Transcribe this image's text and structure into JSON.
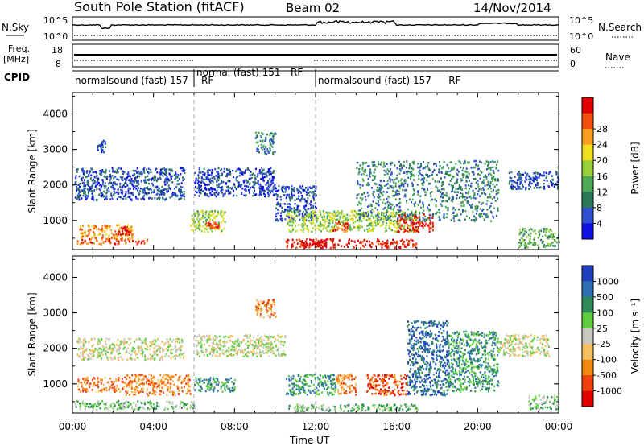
{
  "header": {
    "station": "South Pole Station (fitACF)",
    "beam": "Beam 02",
    "date": "14/Nov/2014"
  },
  "strip_labels": {
    "nsky": "N.Sky",
    "freq_line1": "Freq.",
    "freq_line2": "[MHz]",
    "cpid": "CPID",
    "nsearch": "N.Search",
    "nave": "Nave"
  },
  "strip_ticks": {
    "noise_left_top": "10^5",
    "noise_left_bottom": "10^0",
    "noise_right_top": "10^5",
    "noise_right_bottom": "10^0",
    "freq_left_top": "18",
    "freq_left_bottom": "8",
    "nave_right_top": "60",
    "nave_right_bottom": "0"
  },
  "cpid_segments": [
    {
      "label": "normalsound (fast) 157",
      "suffix": "RF",
      "start_hour": 0,
      "end_hour": 6
    },
    {
      "label": "normal (fast) 151",
      "suffix": "RF",
      "start_hour": 6,
      "end_hour": 12
    },
    {
      "label": "normalsound (fast) 157",
      "suffix": "RF",
      "start_hour": 12,
      "end_hour": 24
    }
  ],
  "chart_data": [
    {
      "type": "heatmap",
      "parameter": "Power",
      "ylabel": "Slant Range [km]",
      "ylim": [
        180,
        4600
      ],
      "yticks": [
        1000,
        2000,
        3000,
        4000
      ],
      "xlim": [
        0,
        24
      ],
      "xticks": [
        "00:00",
        "04:00",
        "08:00",
        "12:00",
        "16:00",
        "20:00",
        "00:00"
      ],
      "colorbar": {
        "label": "Power [dB]",
        "ticks": [
          "4",
          "8",
          "12",
          "16",
          "20",
          "24",
          "28"
        ],
        "colors": [
          "#1010e0",
          "#3050d0",
          "#2a7a5a",
          "#4caa55",
          "#9ad03a",
          "#f0e020",
          "#f7a020",
          "#f05010",
          "#e00000"
        ]
      },
      "echo_regions": [
        {
          "x": [
            0.2,
            3.8
          ],
          "y": [
            350,
            500
          ],
          "level": 7
        },
        {
          "x": [
            0.3,
            3.0
          ],
          "y": [
            500,
            900
          ],
          "level": 6
        },
        {
          "x": [
            2.2,
            2.9
          ],
          "y": [
            600,
            850
          ],
          "level": 8
        },
        {
          "x": [
            0.1,
            5.5
          ],
          "y": [
            1600,
            2500
          ],
          "level": 1
        },
        {
          "x": [
            1.2,
            1.6
          ],
          "y": [
            2900,
            3300
          ],
          "level": 1
        },
        {
          "x": [
            6.0,
            10.0
          ],
          "y": [
            1700,
            2500
          ],
          "level": 1
        },
        {
          "x": [
            5.8,
            7.5
          ],
          "y": [
            700,
            1300
          ],
          "level": 4
        },
        {
          "x": [
            6.5,
            7.2
          ],
          "y": [
            800,
            1000
          ],
          "level": 7
        },
        {
          "x": [
            9.0,
            10.0
          ],
          "y": [
            2900,
            3500
          ],
          "level": 2
        },
        {
          "x": [
            10.0,
            12.0
          ],
          "y": [
            1000,
            2000
          ],
          "level": 1
        },
        {
          "x": [
            10.5,
            17.0
          ],
          "y": [
            250,
            500
          ],
          "level": 8
        },
        {
          "x": [
            11.3,
            12.5
          ],
          "y": [
            280,
            450
          ],
          "level": 9
        },
        {
          "x": [
            10.5,
            17.0
          ],
          "y": [
            700,
            1300
          ],
          "level": 4
        },
        {
          "x": [
            12.8,
            13.6
          ],
          "y": [
            700,
            1000
          ],
          "level": 7
        },
        {
          "x": [
            16.0,
            17.8
          ],
          "y": [
            700,
            1200
          ],
          "level": 8
        },
        {
          "x": [
            14.0,
            21.0
          ],
          "y": [
            1000,
            2700
          ],
          "level": 2
        },
        {
          "x": [
            21.5,
            24.0
          ],
          "y": [
            1900,
            2400
          ],
          "level": 1
        },
        {
          "x": [
            22.0,
            24.0
          ],
          "y": [
            250,
            800
          ],
          "level": 3
        }
      ]
    },
    {
      "type": "heatmap",
      "parameter": "Velocity",
      "ylabel": "Slant Range [km]",
      "xlabel": "Time UT",
      "ylim": [
        180,
        4600
      ],
      "yticks": [
        1000,
        2000,
        3000,
        4000
      ],
      "xlim": [
        0,
        24
      ],
      "xticks": [
        "00:00",
        "04:00",
        "08:00",
        "12:00",
        "16:00",
        "20:00",
        "00:00"
      ],
      "colorbar": {
        "label": "Velocity [m s⁻¹]",
        "ticks": [
          "1000",
          "500",
          "100",
          "25",
          "-25",
          "-100",
          "-500",
          "-1000"
        ],
        "colors": [
          "#1f3fbf",
          "#2c6fb0",
          "#2e8b57",
          "#5fcf3f",
          "#c8c8c0",
          "#f5c060",
          "#f08a10",
          "#f04010",
          "#e00000"
        ]
      },
      "echo_regions": [
        {
          "x": [
            0.2,
            5.5
          ],
          "y": [
            1700,
            2300
          ],
          "level": 4
        },
        {
          "x": [
            6.0,
            10.5
          ],
          "y": [
            1800,
            2400
          ],
          "level": 4
        },
        {
          "x": [
            0.2,
            2.5
          ],
          "y": [
            800,
            1200
          ],
          "level": 6
        },
        {
          "x": [
            2.5,
            5.8
          ],
          "y": [
            700,
            1300
          ],
          "level": 6
        },
        {
          "x": [
            0.1,
            6.0
          ],
          "y": [
            300,
            550
          ],
          "level": 3
        },
        {
          "x": [
            6.0,
            8.0
          ],
          "y": [
            800,
            1200
          ],
          "level": 2
        },
        {
          "x": [
            9.0,
            10.0
          ],
          "y": [
            2900,
            3400
          ],
          "level": 6
        },
        {
          "x": [
            10.5,
            17.0
          ],
          "y": [
            250,
            450
          ],
          "level": 3
        },
        {
          "x": [
            10.5,
            13.0
          ],
          "y": [
            700,
            1300
          ],
          "level": 2
        },
        {
          "x": [
            13.0,
            14.0
          ],
          "y": [
            700,
            1300
          ],
          "level": 6
        },
        {
          "x": [
            14.5,
            16.5
          ],
          "y": [
            700,
            1300
          ],
          "level": 7
        },
        {
          "x": [
            16.5,
            18.5
          ],
          "y": [
            700,
            2800
          ],
          "level": 1
        },
        {
          "x": [
            18.5,
            21.0
          ],
          "y": [
            800,
            2500
          ],
          "level": 2
        },
        {
          "x": [
            21.0,
            23.5
          ],
          "y": [
            1800,
            2400
          ],
          "level": 4
        },
        {
          "x": [
            22.5,
            24.0
          ],
          "y": [
            300,
            700
          ],
          "level": 3
        }
      ]
    }
  ]
}
